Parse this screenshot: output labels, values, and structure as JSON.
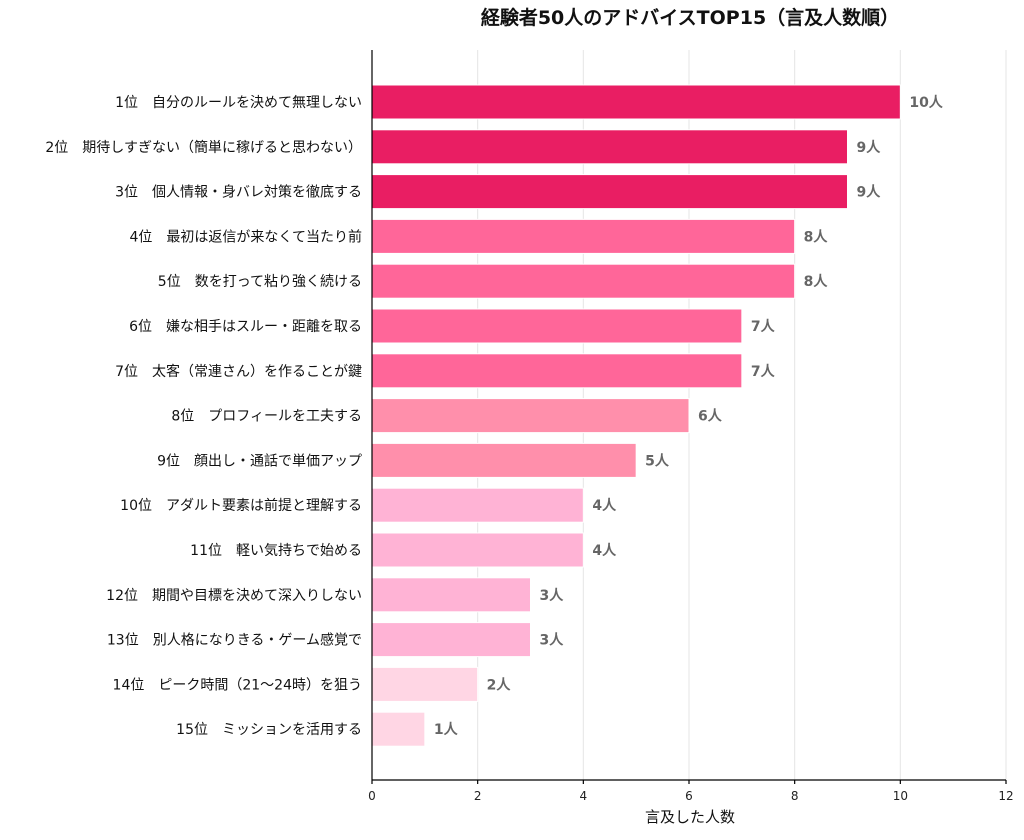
{
  "chart_data": {
    "type": "bar",
    "orientation": "horizontal",
    "title": "経験者50人のアドバイスTOP15（言及人数順）",
    "xlabel": "言及した人数",
    "ylabel": "",
    "xlim": [
      0,
      12
    ],
    "xticks": [
      0,
      2,
      4,
      6,
      8,
      10,
      12
    ],
    "grid": "vertical",
    "value_suffix": "人",
    "categories": [
      "1位　自分のルールを決めて無理しない",
      "2位　期待しすぎない（簡単に稼げると思わない）",
      "3位　個人情報・身バレ対策を徹底する",
      "4位　最初は返信が来なくて当たり前",
      "5位　数を打って粘り強く続ける",
      "6位　嫌な相手はスルー・距離を取る",
      "7位　太客（常連さん）を作ることが鍵",
      "8位　プロフィールを工夫する",
      "9位　顔出し・通話で単価アップ",
      "10位　アダルト要素は前提と理解する",
      "11位　軽い気持ちで始める",
      "12位　期間や目標を決めて深入りしない",
      "13位　別人格になりきる・ゲーム感覚で",
      "14位　ピーク時間（21〜24時）を狙う",
      "15位　ミッションを活用する"
    ],
    "values": [
      10,
      9,
      9,
      8,
      8,
      7,
      7,
      6,
      5,
      4,
      4,
      3,
      3,
      2,
      1
    ],
    "value_labels": [
      "10人",
      "9人",
      "9人",
      "8人",
      "8人",
      "7人",
      "7人",
      "6人",
      "5人",
      "4人",
      "4人",
      "3人",
      "3人",
      "2人",
      "1人"
    ],
    "colors": [
      "#e91e63",
      "#e91e63",
      "#e91e63",
      "#ff6699",
      "#ff6699",
      "#ff6699",
      "#ff6699",
      "#ff8fab",
      "#ff8fab",
      "#ffb3d5",
      "#ffb3d5",
      "#ffb3d5",
      "#ffb3d5",
      "#ffd6e4",
      "#ffd6e4"
    ]
  }
}
